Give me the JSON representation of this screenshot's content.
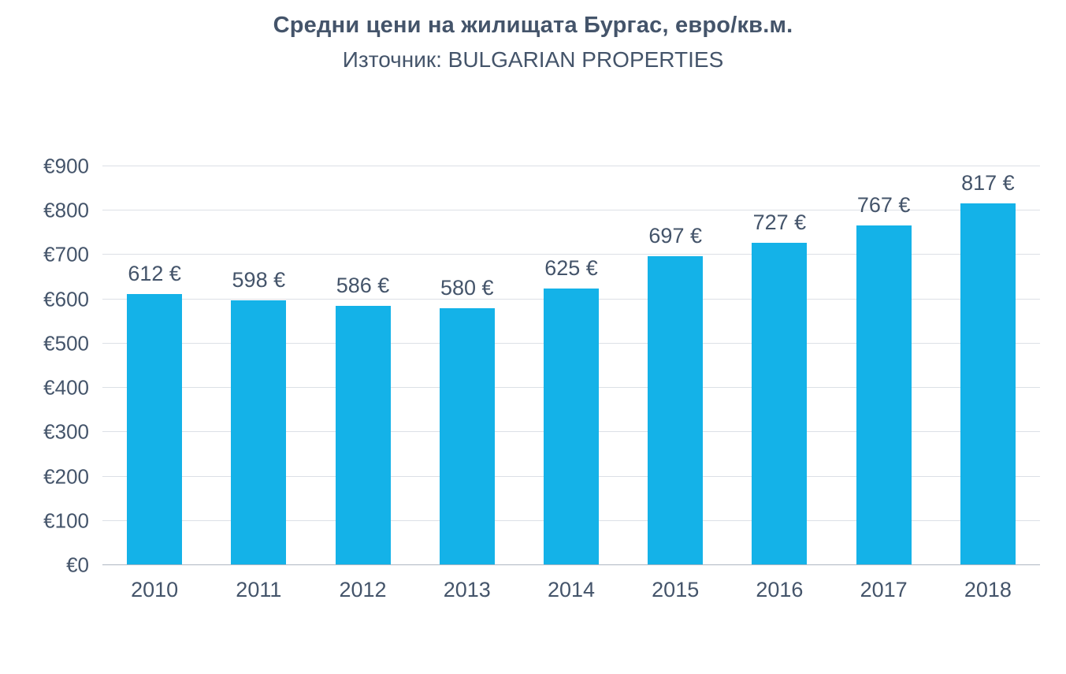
{
  "chart_data": {
    "type": "bar",
    "title": "Средни цени на жилищата Бургас, евро/кв.м.",
    "subtitle": "Източник: BULGARIAN PROPERTIES",
    "categories": [
      "2010",
      "2011",
      "2012",
      "2013",
      "2014",
      "2015",
      "2016",
      "2017",
      "2018"
    ],
    "values": [
      612,
      598,
      586,
      580,
      625,
      697,
      727,
      767,
      817
    ],
    "data_labels": [
      "612 €",
      "598 €",
      "586 €",
      "580 €",
      "625 €",
      "697 €",
      "727 €",
      "767 €",
      "817 €"
    ],
    "xlabel": "",
    "ylabel": "",
    "ylim": [
      0,
      900
    ],
    "ytick_step": 100,
    "ytick_labels": [
      "€0",
      "€100",
      "€200",
      "€300",
      "€400",
      "€500",
      "€600",
      "€700",
      "€800",
      "€900"
    ],
    "grid": true,
    "legend": false,
    "bar_color": "#14B2E8",
    "text_color": "#44546A",
    "grid_color": "#DCE0E6",
    "axis_color": "#AEB6C2"
  }
}
